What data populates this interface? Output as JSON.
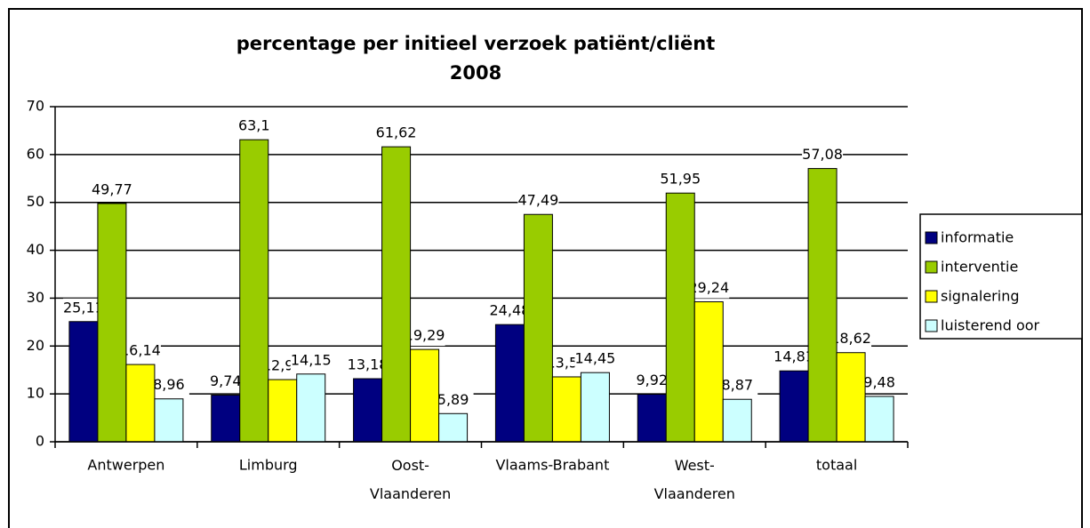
{
  "chart_data": {
    "type": "bar",
    "title": "percentage per initieel verzoek patiënt/cliënt",
    "subtitle": "2008",
    "categories": [
      "Antwerpen",
      "Limburg",
      "Oost-Vlaanderen",
      "Vlaams-Brabant",
      "West-Vlaanderen",
      "totaal"
    ],
    "series": [
      {
        "name": "informatie",
        "color": "#000080",
        "values": [
          25.11,
          9.74,
          13.18,
          24.48,
          9.92,
          14.81
        ],
        "value_labels": [
          "25,11",
          "9,74",
          "13,18",
          "24,48",
          "9,92",
          "14,81"
        ]
      },
      {
        "name": "interventie",
        "color": "#99cc00",
        "values": [
          49.77,
          63.1,
          61.62,
          47.49,
          51.95,
          57.08
        ],
        "value_labels": [
          "49,77",
          "63,1",
          "61,62",
          "47,49",
          "51,95",
          "57,08"
        ]
      },
      {
        "name": "signalering",
        "color": "#ffff00",
        "values": [
          16.14,
          12.99,
          19.29,
          13.56,
          29.24,
          18.62
        ],
        "value_labels": [
          "16,14",
          "12,99",
          "19,29",
          "13,56",
          "29,24",
          "18,62"
        ]
      },
      {
        "name": "luisterend oor",
        "color": "#ccffff",
        "values": [
          8.96,
          14.15,
          5.89,
          14.45,
          8.87,
          9.48
        ],
        "value_labels": [
          "8,96",
          "14,15",
          "5,89",
          "14,45",
          "8,87",
          "9,48"
        ]
      }
    ],
    "ylim": [
      0,
      70
    ],
    "yticks": [
      0,
      10,
      20,
      30,
      40,
      50,
      60,
      70
    ],
    "grid": true,
    "legend": "right"
  }
}
